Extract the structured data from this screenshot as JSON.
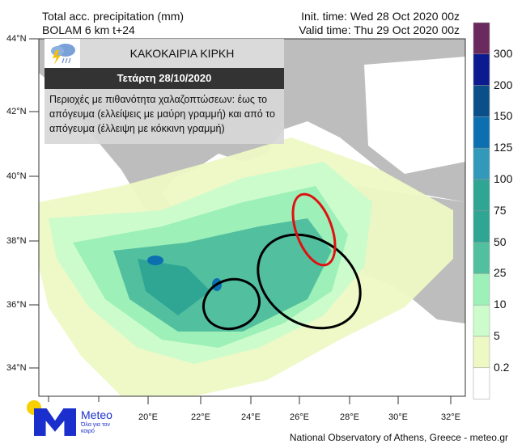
{
  "header": {
    "title_line1": "Total acc. precipitation (mm)",
    "title_line2": "BOLAM 6 km t+24",
    "init_time": "Init. time: Wed 28 Oct 2020 00z",
    "valid_time": "Valid time: Thu 29 Oct 2020 00z"
  },
  "info_box": {
    "icon": "thunderstorm-cloud-icon",
    "title": "ΚΑΚΟΚΑΙΡΙΑ ΚΙΡΚΗ",
    "date": "Τετάρτη 28/10/2020",
    "text": "Περιοχές με πιθανότητα χαλαζοπτώσεων: έως το απόγευμα (ελλείψεις με μαύρη γραμμή) και από το απόγευμα (έλλειψη με κόκκινη γραμμή)"
  },
  "map": {
    "lat_labels": [
      "44°N",
      "42°N",
      "40°N",
      "38°N",
      "36°N",
      "34°N"
    ],
    "lon_labels": [
      "20°E",
      "22°E",
      "24°E",
      "26°E",
      "28°E",
      "30°E",
      "32°E"
    ],
    "land_color": "#bdbdbd",
    "sea_color": "#ffffff",
    "ellipse_colors": {
      "morning": "#000000",
      "afternoon": "#e01010"
    }
  },
  "colorbar": {
    "labels": [
      "300",
      "200",
      "150",
      "125",
      "100",
      "75",
      "50",
      "25",
      "10",
      "5",
      "0.2"
    ],
    "colors": [
      "#6b2a5e",
      "#0c1a8f",
      "#0a4f8a",
      "#0b6fb0",
      "#3399bb",
      "#2fa594",
      "#2fa594",
      "#52bf9f",
      "#9df0b8",
      "#ccfccc",
      "#eef8c4",
      "#ffffff"
    ]
  },
  "logo": {
    "name": "Meteo",
    "tagline": "Όλα για τον καιρό"
  },
  "credit": "National Observatory of Athens, Greece - meteo.gr"
}
